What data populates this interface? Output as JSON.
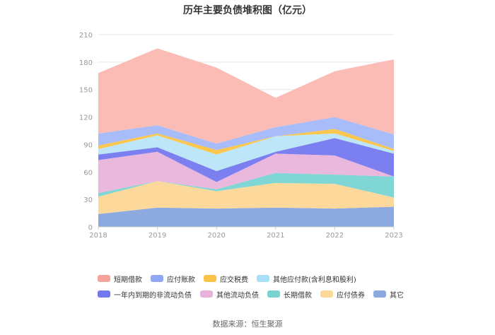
{
  "chart_data": {
    "type": "area",
    "title": "历年主要负债堆积图（亿元）",
    "categories": [
      "2018",
      "2019",
      "2020",
      "2021",
      "2022",
      "2023"
    ],
    "ylim": [
      0,
      210
    ],
    "yticks": [
      0,
      30,
      60,
      90,
      120,
      150,
      180,
      210
    ],
    "grid": true,
    "legend_position": "bottom",
    "series": [
      {
        "name": "其它",
        "color": "#8caae0",
        "values": [
          14,
          21,
          20,
          21,
          20,
          22
        ]
      },
      {
        "name": "应付债券",
        "color": "#fcd99b",
        "values": [
          19,
          29,
          19,
          27,
          27,
          10
        ]
      },
      {
        "name": "长期借款",
        "color": "#7fd6d4",
        "values": [
          4,
          0,
          2,
          11,
          10,
          23
        ]
      },
      {
        "name": "其他流动负债",
        "color": "#eab8dc",
        "values": [
          36,
          32,
          8,
          21,
          21,
          0
        ]
      },
      {
        "name": "一年内到期的非流动负债",
        "color": "#7b7ff0",
        "values": [
          6,
          5,
          12,
          2,
          19,
          25
        ]
      },
      {
        "name": "其他应付款(含利息和股利)",
        "color": "#bde6f8",
        "values": [
          6,
          13,
          18,
          17,
          5,
          3
        ]
      },
      {
        "name": "应交税费",
        "color": "#fcc74e",
        "values": [
          4,
          2,
          5,
          0,
          5,
          2
        ]
      },
      {
        "name": "应付账款",
        "color": "#a8bcf9",
        "values": [
          13,
          9,
          7,
          10,
          13,
          16
        ]
      },
      {
        "name": "短期借款",
        "color": "#fbbcb6",
        "values": [
          66,
          84,
          83,
          32,
          50,
          82
        ]
      }
    ]
  },
  "legend_order": [
    8,
    7,
    6,
    5,
    4,
    3,
    2,
    1,
    0
  ],
  "legend_colors": [
    "#f5a49b",
    "#8fa8f5",
    "#fcc34a",
    "#a9e0f7",
    "#7279ef",
    "#e9b2d8",
    "#79d3d1",
    "#fcd99b",
    "#8caae0"
  ],
  "source": "数据来源：恒生聚源"
}
